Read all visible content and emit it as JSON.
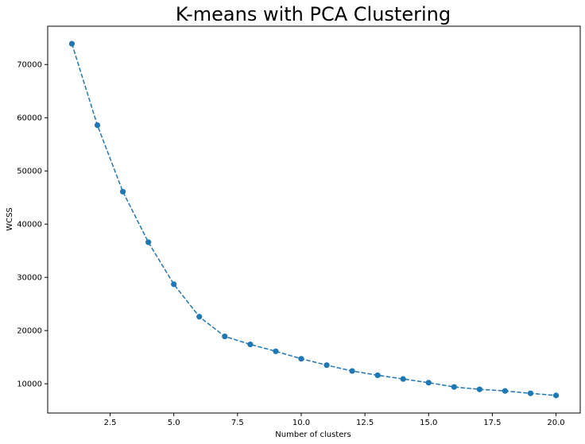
{
  "chart_data": {
    "type": "line",
    "title": "K-means with PCA Clustering",
    "xlabel": "Number of clusters",
    "ylabel": "WCSS",
    "x": [
      1,
      2,
      3,
      4,
      5,
      6,
      7,
      8,
      9,
      10,
      11,
      12,
      13,
      14,
      15,
      16,
      17,
      18,
      19,
      20
    ],
    "series": [
      {
        "values": [
          73900,
          58600,
          46100,
          36600,
          28700,
          22600,
          18900,
          17400,
          16100,
          14700,
          13500,
          12400,
          11600,
          10900,
          10200,
          9400,
          8950,
          8650,
          8200,
          7800
        ]
      }
    ],
    "xlim": [
      0.05,
      20.95
    ],
    "ylim": [
      4500,
      77200
    ],
    "xticks": [
      2.5,
      5.0,
      7.5,
      10.0,
      12.5,
      15.0,
      17.5,
      20.0
    ],
    "xtick_labels": [
      "2.5",
      "5.0",
      "7.5",
      "10.0",
      "12.5",
      "15.0",
      "17.5",
      "20.0"
    ],
    "yticks": [
      10000,
      20000,
      30000,
      40000,
      50000,
      60000,
      70000
    ],
    "ytick_labels": [
      "10000",
      "20000",
      "30000",
      "40000",
      "50000",
      "60000",
      "70000"
    ],
    "line_style": "dashed",
    "marker": "circle",
    "color": "#1f77b4",
    "grid": false,
    "legend": "none"
  }
}
